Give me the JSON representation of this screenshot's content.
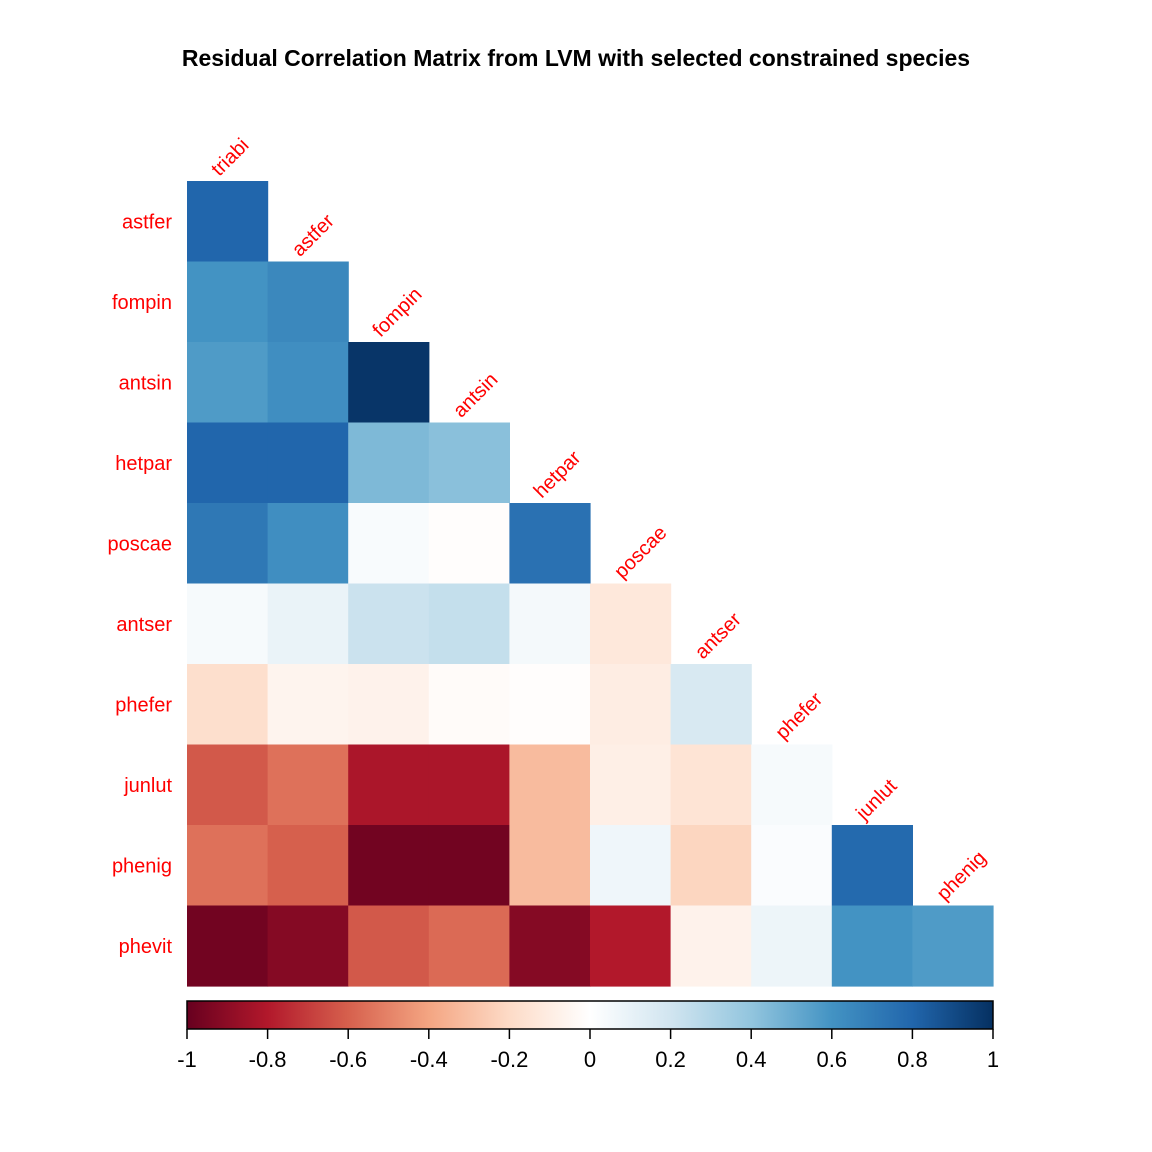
{
  "chart_data": {
    "type": "heatmap",
    "title": "Residual Correlation Matrix from LVM with selected constrained species",
    "columns": [
      "triabi",
      "astfer",
      "fompin",
      "antsin",
      "hetpar",
      "poscae",
      "antser",
      "phefer",
      "junlut",
      "phenig"
    ],
    "rows": [
      "astfer",
      "fompin",
      "antsin",
      "hetpar",
      "poscae",
      "antser",
      "phefer",
      "junlut",
      "phenig",
      "phevit"
    ],
    "values": [
      [
        0.8
      ],
      [
        0.6,
        0.65
      ],
      [
        0.57,
        0.62,
        0.98
      ],
      [
        0.8,
        0.8,
        0.45,
        0.42
      ],
      [
        0.72,
        0.62,
        0.03,
        -0.01,
        0.75
      ],
      [
        0.04,
        0.09,
        0.22,
        0.24,
        0.05,
        -0.13
      ],
      [
        -0.18,
        -0.06,
        -0.07,
        -0.02,
        -0.01,
        -0.1,
        0.17
      ],
      [
        -0.62,
        -0.55,
        -0.82,
        -0.82,
        -0.32,
        -0.09,
        -0.15,
        0.04
      ],
      [
        -0.55,
        -0.6,
        -0.97,
        -0.97,
        -0.32,
        0.07,
        -0.22,
        0.02,
        0.78
      ],
      [
        -0.97,
        -0.92,
        -0.62,
        -0.57,
        -0.92,
        -0.8,
        -0.07,
        0.08,
        0.6,
        0.57
      ]
    ],
    "colorbar": {
      "range": [
        -1,
        1
      ],
      "ticks": [
        "-1",
        "-0.8",
        "-0.6",
        "-0.4",
        "-0.2",
        "0",
        "0.2",
        "0.4",
        "0.6",
        "0.8",
        "1"
      ]
    },
    "palette": [
      "#67001f",
      "#b2182b",
      "#d6604d",
      "#f4a582",
      "#fddbc7",
      "#ffffff",
      "#d1e5f0",
      "#92c5de",
      "#4393c3",
      "#2166ac",
      "#053061"
    ],
    "label_color": "#ff0000"
  }
}
